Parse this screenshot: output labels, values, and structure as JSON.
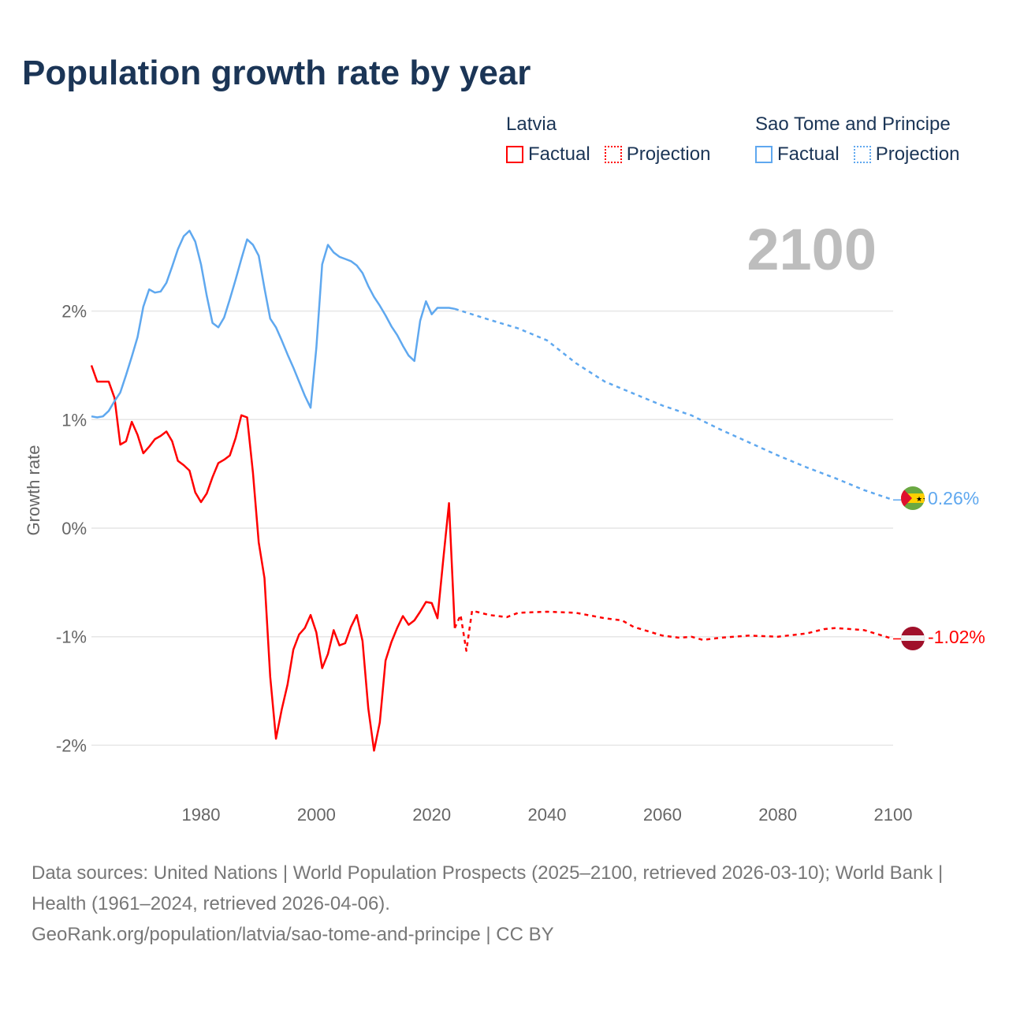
{
  "title": "Population growth rate by year",
  "legend": {
    "groups": [
      {
        "name": "Latvia",
        "color": "#ff0000",
        "factual": "Factual",
        "projection": "Projection"
      },
      {
        "name": "Sao Tome and Principe",
        "color": "#5fa8ef",
        "factual": "Factual",
        "projection": "Projection"
      }
    ]
  },
  "year_label": "2100",
  "footer": {
    "line1": "Data sources: United Nations | World Population Prospects (2025–2100, retrieved 2026-03-10); World Bank | Health (1961–2024, retrieved 2026-04-06).",
    "line2": "GeoRank.org/population/latvia/sao-tome-and-principe | CC BY"
  },
  "chart_data": {
    "type": "line",
    "title": "Population growth rate by year",
    "xlabel": "",
    "ylabel": "Growth rate",
    "xlim": [
      1961,
      2100
    ],
    "ylim": [
      -2.4,
      2.8
    ],
    "x_ticks": [
      1980,
      2000,
      2020,
      2040,
      2060,
      2080,
      2100
    ],
    "y_ticks": [
      {
        "value": 2,
        "label": "2%"
      },
      {
        "value": 1,
        "label": "1%"
      },
      {
        "value": 0,
        "label": "0%"
      },
      {
        "value": -1,
        "label": "-1%"
      },
      {
        "value": -2,
        "label": "-2%"
      }
    ],
    "grid": true,
    "legend_position": "top-right",
    "series": [
      {
        "name": "Latvia",
        "color": "#ff0000",
        "end_label": "-1.02%",
        "flag": "latvia-flag",
        "factual": {
          "x": [
            1961,
            1962,
            1963,
            1964,
            1965,
            1966,
            1967,
            1968,
            1969,
            1970,
            1971,
            1972,
            1973,
            1974,
            1975,
            1976,
            1977,
            1978,
            1979,
            1980,
            1981,
            1982,
            1983,
            1984,
            1985,
            1986,
            1987,
            1988,
            1989,
            1990,
            1991,
            1992,
            1993,
            1994,
            1995,
            1996,
            1997,
            1998,
            1999,
            2000,
            2001,
            2002,
            2003,
            2004,
            2005,
            2006,
            2007,
            2008,
            2009,
            2010,
            2011,
            2012,
            2013,
            2014,
            2015,
            2016,
            2017,
            2018,
            2019,
            2020,
            2021,
            2022,
            2023,
            2024
          ],
          "y": [
            1.5,
            1.35,
            1.35,
            1.35,
            1.2,
            0.77,
            0.8,
            0.98,
            0.86,
            0.69,
            0.75,
            0.82,
            0.85,
            0.89,
            0.8,
            0.62,
            0.58,
            0.53,
            0.33,
            0.24,
            0.32,
            0.47,
            0.6,
            0.63,
            0.67,
            0.83,
            1.04,
            1.02,
            0.51,
            -0.13,
            -0.46,
            -1.37,
            -1.94,
            -1.67,
            -1.44,
            -1.12,
            -0.98,
            -0.92,
            -0.8,
            -0.96,
            -1.29,
            -1.16,
            -0.94,
            -1.08,
            -1.06,
            -0.91,
            -0.8,
            -1.04,
            -1.66,
            -2.05,
            -1.79,
            -1.22,
            -1.05,
            -0.92,
            -0.81,
            -0.89,
            -0.85,
            -0.77,
            -0.68,
            -0.69,
            -0.83,
            -0.29,
            0.23,
            -0.92
          ]
        },
        "projection": {
          "x": [
            2024,
            2025,
            2026,
            2027,
            2030,
            2033,
            2035,
            2040,
            2045,
            2050,
            2053,
            2055,
            2060,
            2063,
            2065,
            2067,
            2070,
            2075,
            2080,
            2085,
            2088,
            2090,
            2095,
            2100
          ],
          "y": [
            -0.92,
            -0.8,
            -1.13,
            -0.76,
            -0.8,
            -0.82,
            -0.78,
            -0.77,
            -0.78,
            -0.83,
            -0.85,
            -0.91,
            -0.99,
            -1.01,
            -1.0,
            -1.03,
            -1.01,
            -0.99,
            -1.0,
            -0.97,
            -0.93,
            -0.92,
            -0.94,
            -1.02
          ]
        }
      },
      {
        "name": "Sao Tome and Principe",
        "color": "#5fa8ef",
        "end_label": "0.26%",
        "flag": "sao-tome-and-principe-flag",
        "factual": {
          "x": [
            1961,
            1962,
            1963,
            1964,
            1965,
            1966,
            1967,
            1968,
            1969,
            1970,
            1971,
            1972,
            1973,
            1974,
            1975,
            1976,
            1977,
            1978,
            1979,
            1980,
            1981,
            1982,
            1983,
            1984,
            1985,
            1986,
            1987,
            1988,
            1989,
            1990,
            1991,
            1992,
            1993,
            1994,
            1995,
            1996,
            1997,
            1998,
            1999,
            2000,
            2001,
            2002,
            2003,
            2004,
            2005,
            2006,
            2007,
            2008,
            2009,
            2010,
            2011,
            2012,
            2013,
            2014,
            2015,
            2016,
            2017,
            2018,
            2019,
            2020,
            2021,
            2022,
            2023,
            2024
          ],
          "y": [
            1.03,
            1.02,
            1.03,
            1.08,
            1.17,
            1.25,
            1.41,
            1.58,
            1.76,
            2.04,
            2.2,
            2.17,
            2.18,
            2.26,
            2.41,
            2.57,
            2.69,
            2.74,
            2.64,
            2.43,
            2.14,
            1.89,
            1.85,
            1.94,
            2.11,
            2.29,
            2.48,
            2.66,
            2.61,
            2.51,
            2.21,
            1.93,
            1.85,
            1.73,
            1.6,
            1.48,
            1.35,
            1.22,
            1.11,
            1.66,
            2.43,
            2.61,
            2.54,
            2.5,
            2.48,
            2.46,
            2.42,
            2.35,
            2.23,
            2.13,
            2.05,
            1.96,
            1.86,
            1.78,
            1.68,
            1.59,
            1.54,
            1.91,
            2.09,
            1.97,
            2.03,
            2.03,
            2.03,
            2.02
          ],
          "note": ""
        },
        "projection": {
          "x": [
            2024,
            2030,
            2035,
            2040,
            2045,
            2050,
            2055,
            2060,
            2065,
            2070,
            2075,
            2080,
            2085,
            2090,
            2095,
            2100
          ],
          "y": [
            2.02,
            1.92,
            1.84,
            1.73,
            1.52,
            1.35,
            1.24,
            1.13,
            1.04,
            0.91,
            0.79,
            0.67,
            0.56,
            0.46,
            0.35,
            0.26
          ]
        }
      }
    ]
  }
}
